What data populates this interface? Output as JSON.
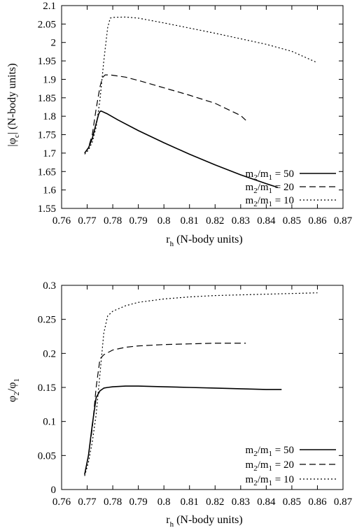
{
  "chart_data": [
    {
      "type": "line",
      "xlabel_main": "r",
      "xlabel_sub": "h",
      "xlabel_rest": " (N-body units)",
      "ylabel_pre": "|φ",
      "ylabel_sub": "c",
      "ylabel_post": "| (N-body units)",
      "xlim": [
        0.76,
        0.87
      ],
      "ylim": [
        1.55,
        2.1
      ],
      "xticks": [
        "0.76",
        "0.77",
        "0.78",
        "0.79",
        "0.8",
        "0.81",
        "0.82",
        "0.83",
        "0.84",
        "0.85",
        "0.86",
        "0.87"
      ],
      "yticks": [
        "1.55",
        "1.6",
        "1.65",
        "1.7",
        "1.75",
        "1.8",
        "1.85",
        "1.9",
        "1.95",
        "2",
        "2.05",
        "2.1"
      ],
      "legend_position": "bottom-right",
      "series": [
        {
          "name": "m2/m1 = 50",
          "dash": "solid",
          "x": [
            0.769,
            0.7705,
            0.772,
            0.7735,
            0.7745,
            0.775,
            0.7755,
            0.778,
            0.782,
            0.79,
            0.8,
            0.81,
            0.82,
            0.83,
            0.84,
            0.8445
          ],
          "y": [
            1.7,
            1.714,
            1.74,
            1.78,
            1.806,
            1.813,
            1.814,
            1.806,
            1.79,
            1.761,
            1.728,
            1.697,
            1.668,
            1.641,
            1.617,
            1.607
          ]
        },
        {
          "name": "m2/m1 = 20",
          "dash": "dashed",
          "x": [
            0.769,
            0.7705,
            0.772,
            0.7735,
            0.775,
            0.776,
            0.777,
            0.779,
            0.78,
            0.785,
            0.79,
            0.8,
            0.81,
            0.82,
            0.83,
            0.832
          ],
          "y": [
            1.7,
            1.715,
            1.75,
            1.82,
            1.88,
            1.905,
            1.912,
            1.912,
            1.911,
            1.906,
            1.897,
            1.877,
            1.857,
            1.835,
            1.802,
            1.789
          ]
        },
        {
          "name": "m2/m1 = 10",
          "dash": "dotted",
          "x": [
            0.769,
            0.7705,
            0.772,
            0.7735,
            0.775,
            0.7765,
            0.778,
            0.779,
            0.78,
            0.785,
            0.79,
            0.8,
            0.81,
            0.82,
            0.83,
            0.84,
            0.85,
            0.86
          ],
          "y": [
            1.697,
            1.708,
            1.73,
            1.77,
            1.845,
            1.95,
            2.04,
            2.066,
            2.068,
            2.069,
            2.066,
            2.053,
            2.039,
            2.025,
            2.01,
            1.995,
            1.976,
            1.945
          ]
        }
      ]
    },
    {
      "type": "line",
      "xlabel_main": "r",
      "xlabel_sub": "h",
      "xlabel_rest": " (N-body units)",
      "ylabel_pre": "φ",
      "ylabel_sub": "2",
      "ylabel_mid": "/φ",
      "ylabel_sub2": "1",
      "xlim": [
        0.76,
        0.87
      ],
      "ylim": [
        0,
        0.3
      ],
      "xticks": [
        "0.76",
        "0.77",
        "0.78",
        "0.79",
        "0.8",
        "0.81",
        "0.82",
        "0.83",
        "0.84",
        "0.85",
        "0.86",
        "0.87"
      ],
      "yticks": [
        "0",
        "0.05",
        "0.1",
        "0.15",
        "0.2",
        "0.25",
        "0.3"
      ],
      "legend_position": "bottom-right",
      "series": [
        {
          "name": "m2/m1 = 50",
          "dash": "solid",
          "x": [
            0.769,
            0.7705,
            0.772,
            0.7735,
            0.775,
            0.7765,
            0.778,
            0.78,
            0.785,
            0.79,
            0.8,
            0.81,
            0.82,
            0.83,
            0.84,
            0.846
          ],
          "y": [
            0.022,
            0.05,
            0.095,
            0.135,
            0.145,
            0.149,
            0.15,
            0.151,
            0.152,
            0.152,
            0.151,
            0.15,
            0.149,
            0.148,
            0.147,
            0.147
          ]
        },
        {
          "name": "m2/m1 = 20",
          "dash": "dashed",
          "x": [
            0.769,
            0.7705,
            0.772,
            0.7735,
            0.775,
            0.7765,
            0.778,
            0.78,
            0.785,
            0.79,
            0.8,
            0.81,
            0.82,
            0.83,
            0.832
          ],
          "y": [
            0.022,
            0.05,
            0.09,
            0.15,
            0.192,
            0.198,
            0.201,
            0.205,
            0.209,
            0.211,
            0.213,
            0.214,
            0.215,
            0.215,
            0.215
          ]
        },
        {
          "name": "m2/m1 = 10",
          "dash": "dotted",
          "x": [
            0.769,
            0.7705,
            0.772,
            0.7735,
            0.775,
            0.7765,
            0.778,
            0.78,
            0.785,
            0.79,
            0.8,
            0.81,
            0.82,
            0.83,
            0.84,
            0.85,
            0.86
          ],
          "y": [
            0.02,
            0.04,
            0.07,
            0.11,
            0.17,
            0.23,
            0.255,
            0.262,
            0.27,
            0.275,
            0.28,
            0.283,
            0.285,
            0.286,
            0.287,
            0.288,
            0.289
          ]
        }
      ]
    }
  ],
  "legend_text": {
    "m_label": "m",
    "sub2": "2",
    "slash_m": "/m",
    "sub1": "1",
    "entries": [
      " = 50",
      " = 20",
      " = 10"
    ]
  }
}
